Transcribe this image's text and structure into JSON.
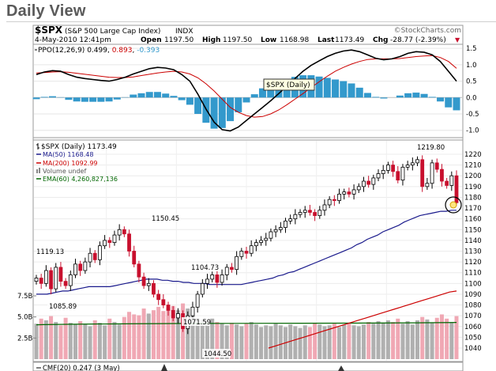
{
  "page": {
    "title": "Daily View",
    "attribution": "©StockCharts.com"
  },
  "header": {
    "symbol": "$SPX",
    "name": "(S&P 500 Large Cap Index)",
    "exchange": "INDX",
    "datetime": "4-May-2010 12:41pm",
    "open_label": "Open",
    "open": "1197.50",
    "high_label": "High",
    "high": "1197.50",
    "low_label": "Low",
    "low": "1168.98",
    "last_label": "Last",
    "last": "1173.49",
    "chg_label": "Chg",
    "chg": "-28.77 (-2.39%)",
    "chg_arrow": "▼"
  },
  "ppo_panel": {
    "label": "PPO(12,26,9)",
    "values": [
      "0.499",
      "0.893",
      "-0.393"
    ],
    "colors": [
      "#000000",
      "#cc0000",
      "#3399cc"
    ],
    "tooltip": "$SPX (Daily)",
    "ticks": [
      "1.5",
      "1.0",
      "0.5",
      "0.0",
      "-0.5",
      "-1.0"
    ]
  },
  "price_panel": {
    "legend": [
      {
        "text": "$SPX (Daily) 1173.49",
        "color": "#000000",
        "swatch": "ohlc"
      },
      {
        "text": "MA(50) 1168.48",
        "color": "#1a1a8c",
        "swatch": "line"
      },
      {
        "text": "MA(200) 1092.99",
        "color": "#cc0000",
        "swatch": "line"
      },
      {
        "text": "Volume undef",
        "color": "#555555",
        "swatch": "bars"
      },
      {
        "text": "EMA(60) 4,260,827,136",
        "color": "#006600",
        "swatch": "line"
      }
    ],
    "annotations": [
      "1219.80",
      "1150.45",
      "1119.13",
      "1104.73",
      "1085.89",
      "1071.59",
      "1044.50"
    ],
    "y_ticks": [
      "1220",
      "1210",
      "1200",
      "1190",
      "1180",
      "1170",
      "1160",
      "1150",
      "1140",
      "1130",
      "1120",
      "1110",
      "1100",
      "1090",
      "1080",
      "1070",
      "1060",
      "1050",
      "1040"
    ],
    "volume_ticks": [
      "7.5B",
      "5.0B",
      "2.5B"
    ]
  },
  "cmf_panel": {
    "label": "CMF(20) 0.247 (3 May)"
  },
  "colors": {
    "up_candle": "#ffffff",
    "down_candle": "#c8102e",
    "ma50": "#1a1a8c",
    "ma200": "#cc0000",
    "ema": "#006600",
    "ppo": "#000000",
    "signal": "#cc0000",
    "histogram": "#3399cc",
    "vol_up": "#b0b0b0",
    "vol_down": "#f0a8b4"
  },
  "chart_data": [
    {
      "type": "line",
      "title": "PPO(12,26,9)",
      "ylim": [
        -1.2,
        1.6
      ],
      "series": [
        {
          "name": "PPO(12,26,9)",
          "values": [
            0.7,
            0.78,
            0.82,
            0.8,
            0.7,
            0.62,
            0.58,
            0.55,
            0.52,
            0.5,
            0.55,
            0.62,
            0.72,
            0.8,
            0.88,
            0.92,
            0.9,
            0.85,
            0.7,
            0.5,
            0.1,
            -0.35,
            -0.75,
            -0.98,
            -1.02,
            -0.9,
            -0.7,
            -0.5,
            -0.3,
            -0.1,
            0.12,
            0.35,
            0.58,
            0.8,
            0.98,
            1.12,
            1.25,
            1.35,
            1.42,
            1.45,
            1.4,
            1.3,
            1.2,
            1.15,
            1.18,
            1.25,
            1.35,
            1.4,
            1.38,
            1.3,
            1.1,
            0.8,
            0.5
          ]
        },
        {
          "name": "Signal",
          "values": [
            0.75,
            0.76,
            0.78,
            0.79,
            0.77,
            0.74,
            0.71,
            0.68,
            0.65,
            0.62,
            0.61,
            0.61,
            0.63,
            0.67,
            0.71,
            0.75,
            0.78,
            0.8,
            0.78,
            0.72,
            0.6,
            0.42,
            0.2,
            -0.05,
            -0.3,
            -0.45,
            -0.55,
            -0.6,
            -0.58,
            -0.5,
            -0.38,
            -0.22,
            -0.05,
            0.12,
            0.3,
            0.48,
            0.65,
            0.8,
            0.92,
            1.02,
            1.1,
            1.16,
            1.18,
            1.18,
            1.18,
            1.19,
            1.22,
            1.25,
            1.27,
            1.28,
            1.22,
            1.1,
            0.89
          ]
        },
        {
          "name": "Histogram",
          "values": [
            -0.05,
            0.02,
            0.04,
            0.01,
            -0.07,
            -0.12,
            -0.13,
            -0.13,
            -0.13,
            -0.12,
            -0.06,
            0.01,
            0.09,
            0.13,
            0.17,
            0.17,
            0.12,
            0.05,
            -0.08,
            -0.22,
            -0.5,
            -0.77,
            -0.95,
            -0.93,
            -0.72,
            -0.45,
            -0.15,
            0.1,
            0.28,
            0.4,
            0.5,
            0.57,
            0.63,
            0.68,
            0.68,
            0.64,
            0.6,
            0.55,
            0.5,
            0.43,
            0.3,
            0.14,
            0.02,
            -0.03,
            0.0,
            0.06,
            0.13,
            0.15,
            0.11,
            0.02,
            -0.12,
            -0.3,
            -0.39
          ]
        }
      ]
    },
    {
      "type": "line",
      "title": "$SPX (Daily)",
      "ylim": [
        1038,
        1226
      ],
      "close": [
        1105,
        1100,
        1112,
        1095,
        1115,
        1102,
        1098,
        1108,
        1118,
        1112,
        1120,
        1128,
        1122,
        1135,
        1140,
        1138,
        1145,
        1150,
        1146,
        1130,
        1118,
        1106,
        1098,
        1100,
        1090,
        1085,
        1080,
        1075,
        1068,
        1072,
        1058,
        1070,
        1078,
        1090,
        1100,
        1104,
        1108,
        1101,
        1108,
        1115,
        1113,
        1125,
        1130,
        1128,
        1135,
        1138,
        1140,
        1142,
        1148,
        1150,
        1152,
        1158,
        1160,
        1164,
        1166,
        1168,
        1166,
        1163,
        1168,
        1173,
        1178,
        1177,
        1183,
        1185,
        1183,
        1187,
        1190,
        1195,
        1192,
        1198,
        1202,
        1205,
        1210,
        1204,
        1196,
        1208,
        1210,
        1212,
        1215,
        1190,
        1193,
        1212,
        1206,
        1195,
        1191,
        1200,
        1175
      ],
      "series": [
        {
          "name": "MA(50)",
          "values": [
            1090,
            1090,
            1090,
            1091,
            1092,
            1093,
            1093,
            1094,
            1095,
            1096,
            1097,
            1097,
            1097,
            1097,
            1097,
            1098,
            1099,
            1100,
            1101,
            1102,
            1103,
            1104,
            1104,
            1104,
            1103,
            1103,
            1102,
            1102,
            1101,
            1101,
            1100,
            1100,
            1100,
            1099,
            1099,
            1099,
            1099,
            1099,
            1099,
            1099,
            1100,
            1101,
            1102,
            1103,
            1104,
            1105,
            1107,
            1108,
            1110,
            1111,
            1113,
            1115,
            1117,
            1119,
            1121,
            1123,
            1125,
            1127,
            1129,
            1131,
            1133,
            1136,
            1138,
            1141,
            1143,
            1145,
            1148,
            1150,
            1152,
            1154,
            1157,
            1159,
            1161,
            1163,
            1164,
            1165,
            1166,
            1167,
            1167,
            1168,
            1168
          ]
        },
        {
          "name": "MA(200)",
          "values": [
            1040,
            1042,
            1044,
            1046,
            1048,
            1050,
            1052,
            1054,
            1056,
            1058,
            1060,
            1062,
            1064,
            1066,
            1068,
            1070,
            1072,
            1074,
            1076,
            1078,
            1080,
            1082,
            1084,
            1086,
            1088,
            1090,
            1092,
            1093
          ]
        },
        {
          "name": "EMA(60)",
          "values": [
            4260000000,
            4260000000,
            4260000000,
            4260000000
          ]
        }
      ]
    },
    {
      "type": "bar",
      "title": "Volume",
      "yticks": [
        "2.5B",
        "5.0B",
        "7.5B"
      ],
      "values": [
        4.2,
        4.8,
        4.6,
        5.1,
        4.4,
        4.0,
        4.9,
        4.3,
        4.1,
        4.5,
        4.2,
        3.9,
        4.6,
        4.3,
        4.0,
        4.8,
        4.4,
        4.1,
        5.0,
        5.6,
        5.3,
        5.2,
        6.0,
        5.4,
        5.8,
        6.2,
        5.7,
        6.1,
        6.3,
        5.8,
        6.6,
        6.0,
        5.5,
        4.9,
        4.7,
        4.5,
        4.8,
        4.4,
        4.2,
        4.0,
        4.3,
        4.1,
        3.9,
        4.2,
        4.4,
        4.1,
        3.8,
        4.0,
        3.9,
        4.2,
        4.0,
        3.8,
        4.1,
        3.9,
        3.7,
        4.0,
        3.8,
        4.3,
        4.1,
        3.9,
        4.0,
        4.2,
        3.8,
        4.1,
        4.3,
        4.0,
        3.9,
        4.1,
        4.4,
        4.2,
        4.5,
        4.3,
        4.6,
        4.4,
        4.8,
        4.2,
        4.5,
        4.1,
        4.6,
        5.0,
        4.7,
        4.3,
        4.9,
        5.3,
        4.8,
        4.4,
        5.1
      ]
    }
  ]
}
